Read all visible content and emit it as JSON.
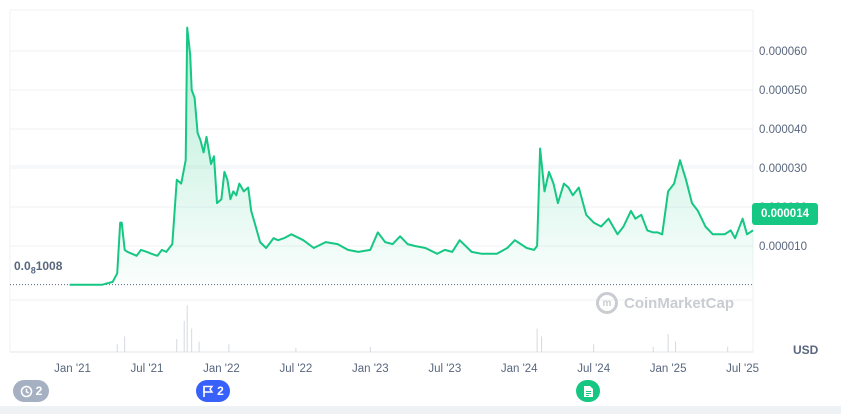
{
  "chart_data": {
    "type": "area",
    "currency": "USD",
    "y_axis": {
      "ticks": [
        "0.000010",
        "0.000020",
        "0.000030",
        "0.000040",
        "0.000050",
        "0.000060"
      ],
      "tick_values": [
        1e-05,
        2e-05,
        3e-05,
        4e-05,
        5e-05,
        6e-05
      ],
      "range": [
        -5e-07,
        7.05e-05
      ]
    },
    "x_axis": {
      "ticks": [
        "Jan '21",
        "Jul '21",
        "Jan '22",
        "Jul '22",
        "Jan '23",
        "Jul '23",
        "Jan '24",
        "Jul '24",
        "Jan '25",
        "Jul '25"
      ],
      "tick_values": [
        2021.0,
        2021.5,
        2022.0,
        2022.5,
        2023.0,
        2023.5,
        2024.0,
        2024.5,
        2025.0,
        2025.5
      ],
      "range": [
        2020.58,
        2025.57
      ]
    },
    "start_price_label": "0.0",
    "start_price_zeros": "8",
    "start_price_digits": "1008",
    "current_price": "0.000014",
    "watermark": "CoinMarketCap",
    "line_color": "#16c784",
    "series": [
      {
        "x": [
          2020.98,
          2021.1,
          2021.2,
          2021.27,
          2021.3,
          2021.32,
          2021.33,
          2021.35,
          2021.37,
          2021.4,
          2021.43,
          2021.46,
          2021.5,
          2021.53,
          2021.57,
          2021.6,
          2021.63,
          2021.67,
          2021.7,
          2021.73,
          2021.76,
          2021.77,
          2021.79,
          2021.8,
          2021.82,
          2021.84,
          2021.86,
          2021.88,
          2021.9,
          2021.93,
          2021.95,
          2021.97,
          2022.0,
          2022.02,
          2022.04,
          2022.06,
          2022.08,
          2022.1,
          2022.12,
          2022.15,
          2022.18,
          2022.2,
          2022.23,
          2022.26,
          2022.3,
          2022.33,
          2022.35,
          2022.38,
          2022.42,
          2022.47,
          2022.55,
          2022.62,
          2022.7,
          2022.78,
          2022.85,
          2022.92,
          2023.0,
          2023.05,
          2023.1,
          2023.15,
          2023.2,
          2023.25,
          2023.3,
          2023.37,
          2023.45,
          2023.5,
          2023.55,
          2023.6,
          2023.68,
          2023.75,
          2023.85,
          2023.92,
          2023.97,
          2024.05,
          2024.1,
          2024.12,
          2024.14,
          2024.17,
          2024.2,
          2024.23,
          2024.26,
          2024.3,
          2024.33,
          2024.36,
          2024.4,
          2024.45,
          2024.5,
          2024.55,
          2024.6,
          2024.66,
          2024.7,
          2024.75,
          2024.78,
          2024.82,
          2024.86,
          2024.9,
          2024.93,
          2024.96,
          2025.0,
          2025.04,
          2025.08,
          2025.12,
          2025.16,
          2025.2,
          2025.25,
          2025.3,
          2025.35,
          2025.38,
          2025.42,
          2025.45,
          2025.5,
          2025.53,
          2025.57
        ],
        "y": [
          1e-07,
          1e-07,
          1e-07,
          8e-07,
          3e-06,
          1.6e-05,
          1.6e-05,
          9e-06,
          8.5e-06,
          8e-06,
          7.5e-06,
          9e-06,
          8.5e-06,
          8e-06,
          7.5e-06,
          9e-06,
          8.5e-06,
          1.05e-05,
          2.7e-05,
          2.6e-05,
          3.2e-05,
          6.6e-05,
          5.9e-05,
          5e-05,
          4.8e-05,
          3.9e-05,
          3.7e-05,
          3.4e-05,
          3.8e-05,
          3.1e-05,
          3.3e-05,
          2.1e-05,
          2.2e-05,
          2.9e-05,
          2.7e-05,
          2.2e-05,
          2.4e-05,
          2.3e-05,
          2.6e-05,
          2.4e-05,
          2.5e-05,
          1.9e-05,
          1.5e-05,
          1.1e-05,
          9.5e-06,
          1.1e-05,
          1.2e-05,
          1.15e-05,
          1.2e-05,
          1.3e-05,
          1.15e-05,
          9.5e-06,
          1.1e-05,
          1.05e-05,
          9e-06,
          8.5e-06,
          9e-06,
          1.35e-05,
          1.1e-05,
          1.05e-05,
          1.25e-05,
          1.05e-05,
          1e-05,
          9.5e-06,
          8e-06,
          9e-06,
          8.5e-06,
          1.15e-05,
          8.5e-06,
          8e-06,
          8e-06,
          9.5e-06,
          1.15e-05,
          9.5e-06,
          9e-06,
          1e-05,
          3.5e-05,
          2.4e-05,
          2.9e-05,
          2.6e-05,
          2.1e-05,
          2.6e-05,
          2.5e-05,
          2.3e-05,
          2.5e-05,
          1.8e-05,
          1.6e-05,
          1.5e-05,
          1.7e-05,
          1.3e-05,
          1.5e-05,
          1.9e-05,
          1.7e-05,
          1.8e-05,
          1.4e-05,
          1.35e-05,
          1.35e-05,
          1.3e-05,
          2.4e-05,
          2.6e-05,
          3.2e-05,
          2.7e-05,
          2.1e-05,
          1.9e-05,
          1.5e-05,
          1.3e-05,
          1.3e-05,
          1.3e-05,
          1.4e-05,
          1.2e-05,
          1.7e-05,
          1.3e-05,
          1.4e-05
        ]
      }
    ],
    "volume": {
      "x": [
        2021.3,
        2021.35,
        2021.7,
        2021.75,
        2021.77,
        2021.8,
        2021.85,
        2022.05,
        2022.5,
        2023.0,
        2024.12,
        2024.15,
        2024.5,
        2024.9,
        2025.0,
        2025.05,
        2025.4
      ],
      "v": [
        0.15,
        0.3,
        0.25,
        0.6,
        0.9,
        0.45,
        0.2,
        0.15,
        0.08,
        0.1,
        0.45,
        0.3,
        0.15,
        0.1,
        0.35,
        0.2,
        0.1
      ]
    }
  },
  "events": {
    "history_count": "2",
    "flag_count": "2"
  }
}
